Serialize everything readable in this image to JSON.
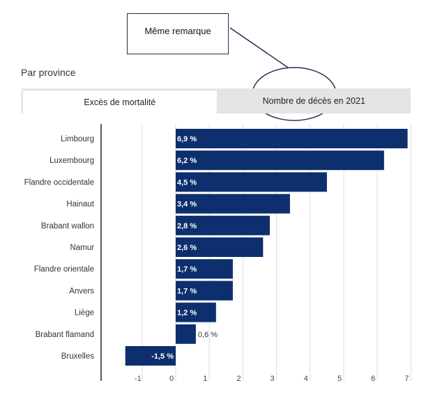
{
  "callout": {
    "text": "Même remarque"
  },
  "section": {
    "title": "Par province"
  },
  "tabs": [
    {
      "label": "Excès de mortalité",
      "active": true
    },
    {
      "label": "Nombre de décès en 2021",
      "active": false
    }
  ],
  "colors": {
    "bar": "#0d2f6e",
    "grid": "#dddddd",
    "axis": "#222222",
    "annotation": "#1f2f4f"
  },
  "chart_data": {
    "type": "bar",
    "orientation": "horizontal",
    "categories": [
      "Limbourg",
      "Luxembourg",
      "Flandre occidentale",
      "Hainaut",
      "Brabant wallon",
      "Namur",
      "Flandre orientale",
      "Anvers",
      "Liège",
      "Brabant flamand",
      "Bruxelles"
    ],
    "values": [
      6.9,
      6.2,
      4.5,
      3.4,
      2.8,
      2.6,
      1.7,
      1.7,
      1.2,
      0.6,
      -1.5
    ],
    "value_labels": [
      "6,9 %",
      "6,2 %",
      "4,5 %",
      "3,4 %",
      "2,8 %",
      "2,6 %",
      "1,7 %",
      "1,7 %",
      "1,2 %",
      "0,6 %",
      "-1,5 %"
    ],
    "xlim": [
      -1.5,
      7
    ],
    "xticks": [
      -1,
      0,
      1,
      2,
      3,
      4,
      5,
      6,
      7
    ],
    "xtick_labels": [
      "-1",
      "0",
      "1",
      "2",
      "3",
      "4",
      "5",
      "6",
      "7"
    ],
    "grid": true
  }
}
